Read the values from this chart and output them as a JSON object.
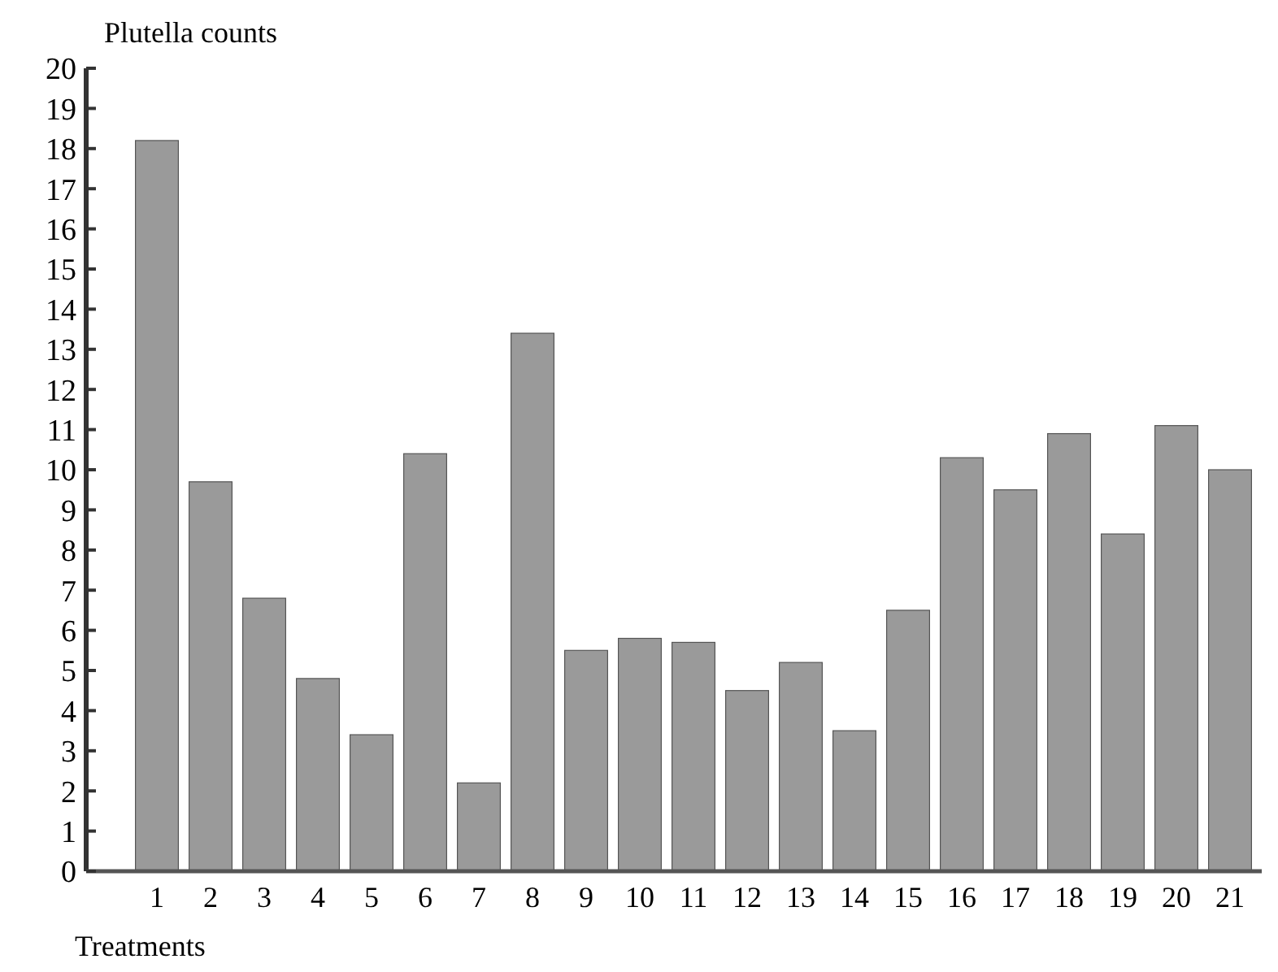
{
  "chart_data": {
    "type": "bar",
    "ylabel": "Plutella counts",
    "xlabel": "Treatments",
    "categories": [
      "1",
      "2",
      "3",
      "4",
      "5",
      "6",
      "7",
      "8",
      "9",
      "10",
      "11",
      "12",
      "13",
      "14",
      "15",
      "16",
      "17",
      "18",
      "19",
      "20",
      "21"
    ],
    "values": [
      18.2,
      9.7,
      6.8,
      4.8,
      3.4,
      10.4,
      2.2,
      13.4,
      5.5,
      5.8,
      5.7,
      4.5,
      5.2,
      3.5,
      6.5,
      10.3,
      9.5,
      10.9,
      8.4,
      11.1,
      10.0
    ],
    "color": "#9a9a9a",
    "ylim": [
      0,
      20
    ],
    "yticks": [
      0,
      1,
      2,
      3,
      4,
      5,
      6,
      7,
      8,
      9,
      10,
      11,
      12,
      13,
      14,
      15,
      16,
      17,
      18,
      19,
      20
    ],
    "grid": false
  }
}
